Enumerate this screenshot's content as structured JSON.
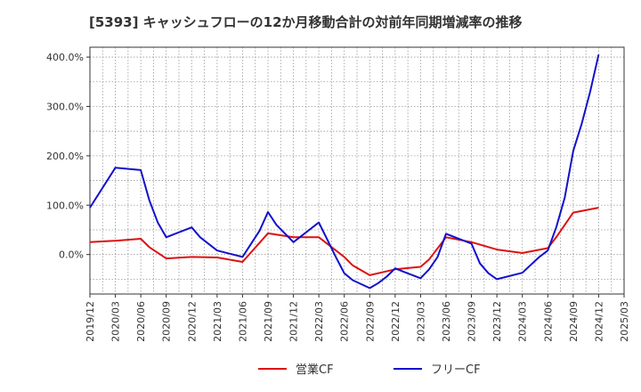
{
  "chart_data": {
    "type": "line",
    "title": "[5393]  キャッシュフローの12か月移動合計の対前年同期増減率の推移",
    "xlabel": "",
    "ylabel": "",
    "ylim": [
      -80,
      420
    ],
    "yticks": [
      0,
      100,
      200,
      300,
      400
    ],
    "ytick_labels": [
      "0.0%",
      "100.0%",
      "200.0%",
      "300.0%",
      "400.0%"
    ],
    "xlim": [
      "2019/12",
      "2025/03"
    ],
    "xtick_labels": [
      "2019/12",
      "2020/03",
      "2020/06",
      "2020/09",
      "2020/12",
      "2021/03",
      "2021/06",
      "2021/09",
      "2021/12",
      "2022/03",
      "2022/06",
      "2022/09",
      "2022/12",
      "2023/03",
      "2023/06",
      "2023/09",
      "2023/12",
      "2024/03",
      "2024/06",
      "2024/09",
      "2024/12",
      "2025/03"
    ],
    "grid": true,
    "legend_position": "bottom",
    "series": [
      {
        "name": "営業CF",
        "color": "#dd1111",
        "points": [
          [
            "2019/12",
            25
          ],
          [
            "2020/03",
            28
          ],
          [
            "2020/06",
            32
          ],
          [
            "2020/07",
            15
          ],
          [
            "2020/09",
            -8
          ],
          [
            "2020/12",
            -5
          ],
          [
            "2021/03",
            -6
          ],
          [
            "2021/06",
            -15
          ],
          [
            "2021/09",
            43
          ],
          [
            "2021/12",
            35
          ],
          [
            "2022/03",
            35
          ],
          [
            "2022/06",
            -5
          ],
          [
            "2022/07",
            -22
          ],
          [
            "2022/09",
            -42
          ],
          [
            "2022/12",
            -30
          ],
          [
            "2023/03",
            -25
          ],
          [
            "2023/04",
            -10
          ],
          [
            "2023/06",
            35
          ],
          [
            "2023/09",
            25
          ],
          [
            "2023/12",
            10
          ],
          [
            "2024/03",
            3
          ],
          [
            "2024/06",
            13
          ],
          [
            "2024/07",
            35
          ],
          [
            "2024/09",
            85
          ],
          [
            "2024/12",
            95
          ]
        ]
      },
      {
        "name": "フリーCF",
        "color": "#1111cc",
        "points": [
          [
            "2019/12",
            95
          ],
          [
            "2020/03",
            176
          ],
          [
            "2020/06",
            171
          ],
          [
            "2020/07",
            110
          ],
          [
            "2020/08",
            65
          ],
          [
            "2020/09",
            35
          ],
          [
            "2020/12",
            55
          ],
          [
            "2021/01",
            35
          ],
          [
            "2021/03",
            8
          ],
          [
            "2021/06",
            -5
          ],
          [
            "2021/08",
            48
          ],
          [
            "2021/09",
            86
          ],
          [
            "2021/10",
            60
          ],
          [
            "2021/12",
            25
          ],
          [
            "2022/03",
            65
          ],
          [
            "2022/04",
            30
          ],
          [
            "2022/05",
            -5
          ],
          [
            "2022/06",
            -38
          ],
          [
            "2022/07",
            -52
          ],
          [
            "2022/09",
            -68
          ],
          [
            "2022/10",
            -58
          ],
          [
            "2022/11",
            -45
          ],
          [
            "2022/12",
            -28
          ],
          [
            "2023/01",
            -35
          ],
          [
            "2023/03",
            -48
          ],
          [
            "2023/04",
            -30
          ],
          [
            "2023/05",
            -5
          ],
          [
            "2023/06",
            42
          ],
          [
            "2023/09",
            22
          ],
          [
            "2023/10",
            -18
          ],
          [
            "2023/11",
            -38
          ],
          [
            "2023/12",
            -50
          ],
          [
            "2024/03",
            -37
          ],
          [
            "2024/05",
            -5
          ],
          [
            "2024/06",
            8
          ],
          [
            "2024/07",
            55
          ],
          [
            "2024/08",
            115
          ],
          [
            "2024/09",
            210
          ],
          [
            "2024/10",
            265
          ],
          [
            "2024/11",
            330
          ],
          [
            "2024/12",
            405
          ]
        ]
      }
    ]
  }
}
